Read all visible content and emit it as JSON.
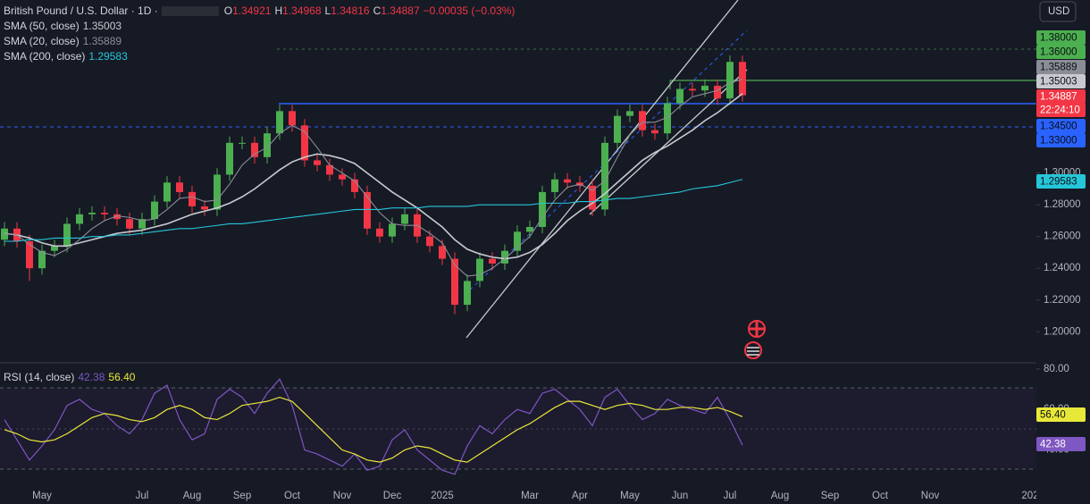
{
  "chart_data": [
    {
      "type": "candlestick",
      "title": "British Pound / U.S. Dollar · 1D ·",
      "ohlc": [
        {
          "label": "O",
          "value": 1.34921
        },
        {
          "label": "H",
          "value": 1.34968
        },
        {
          "label": "L",
          "value": 1.34816
        },
        {
          "label": "C",
          "value": 1.34887
        }
      ],
      "change": "−0.00035 (−0.03%)",
      "currency": "USD",
      "countdown": "22:24:10",
      "up_color": "#4caf50",
      "down_color": "#f23645",
      "ylim": [
        1.181,
        1.409
      ],
      "yticks": [
        {
          "value": 1.2,
          "label": "1.20000"
        },
        {
          "value": 1.22,
          "label": "1.22000"
        },
        {
          "value": 1.24,
          "label": "1.24000"
        },
        {
          "value": 1.26,
          "label": "1.26000"
        },
        {
          "value": 1.28,
          "label": "1.28000"
        },
        {
          "value": 1.3,
          "label": "1.30000"
        }
      ],
      "grid": false,
      "open": [
        1.258,
        1.265,
        1.257,
        1.24,
        1.251,
        1.254,
        1.268,
        1.274,
        1.275,
        1.274,
        1.271,
        1.265,
        1.271,
        1.282,
        1.294,
        1.288,
        1.279,
        1.277,
        1.299,
        1.319,
        1.319,
        1.31,
        1.325,
        1.339,
        1.33,
        1.308,
        1.305,
        1.299,
        1.296,
        1.288,
        1.265,
        1.26,
        1.268,
        1.274,
        1.26,
        1.254,
        1.246,
        1.217,
        1.232,
        1.246,
        1.243,
        1.251,
        1.263,
        1.266,
        1.288,
        1.296,
        1.294,
        1.292,
        1.277,
        1.319,
        1.336,
        1.339,
        1.327,
        1.325,
        1.344,
        1.353,
        1.352,
        1.355,
        1.347,
        1.37,
        null,
        null,
        null,
        null,
        null,
        null,
        null,
        null,
        null,
        null,
        null,
        null,
        null,
        null,
        null,
        null,
        null,
        null,
        null,
        null,
        null,
        null,
        null
      ],
      "high": [
        1.269,
        1.269,
        1.261,
        1.255,
        1.258,
        1.272,
        1.278,
        1.279,
        1.279,
        1.278,
        1.275,
        1.275,
        1.286,
        1.298,
        1.298,
        1.292,
        1.283,
        1.303,
        1.323,
        1.323,
        1.323,
        1.329,
        1.343,
        1.343,
        1.334,
        1.312,
        1.309,
        1.303,
        1.3,
        1.292,
        1.269,
        1.272,
        1.278,
        1.278,
        1.264,
        1.258,
        1.25,
        1.236,
        1.25,
        1.25,
        1.255,
        1.267,
        1.27,
        1.292,
        1.3,
        1.3,
        1.298,
        1.296,
        1.323,
        1.34,
        1.343,
        1.343,
        1.331,
        1.348,
        1.357,
        1.357,
        1.359,
        1.359,
        1.374,
        1.374,
        null,
        null,
        null,
        null,
        null,
        null,
        null,
        null,
        null,
        null,
        null,
        null,
        null,
        null,
        null,
        null,
        null,
        null,
        null,
        null,
        null,
        null,
        null
      ],
      "low": [
        1.254,
        1.253,
        1.232,
        1.236,
        1.247,
        1.25,
        1.264,
        1.27,
        1.27,
        1.267,
        1.261,
        1.261,
        1.267,
        1.278,
        1.284,
        1.275,
        1.273,
        1.273,
        1.295,
        1.315,
        1.306,
        1.306,
        1.321,
        1.326,
        1.304,
        1.301,
        1.295,
        1.292,
        1.284,
        1.261,
        1.256,
        1.256,
        1.264,
        1.256,
        1.25,
        1.242,
        1.211,
        1.213,
        1.228,
        1.239,
        1.239,
        1.247,
        1.259,
        1.262,
        1.284,
        1.29,
        1.288,
        1.273,
        1.273,
        1.315,
        1.332,
        1.323,
        1.321,
        1.321,
        1.34,
        1.348,
        1.348,
        1.343,
        1.343,
        1.345,
        null,
        null,
        null,
        null,
        null,
        null,
        null,
        null,
        null,
        null,
        null,
        null,
        null,
        null,
        null,
        null,
        null,
        null,
        null,
        null,
        null,
        null,
        null
      ],
      "close": [
        1.265,
        1.257,
        1.24,
        1.251,
        1.254,
        1.268,
        1.274,
        1.275,
        1.274,
        1.271,
        1.265,
        1.271,
        1.282,
        1.294,
        1.288,
        1.279,
        1.277,
        1.299,
        1.319,
        1.319,
        1.31,
        1.325,
        1.339,
        1.33,
        1.308,
        1.305,
        1.299,
        1.296,
        1.288,
        1.265,
        1.26,
        1.268,
        1.274,
        1.26,
        1.254,
        1.246,
        1.217,
        1.232,
        1.246,
        1.243,
        1.251,
        1.263,
        1.266,
        1.288,
        1.296,
        1.294,
        1.292,
        1.277,
        1.319,
        1.336,
        1.339,
        1.327,
        1.325,
        1.344,
        1.353,
        1.352,
        1.355,
        1.347,
        1.37,
        1.349,
        null,
        null,
        null,
        null,
        null,
        null,
        null,
        null,
        null,
        null,
        null,
        null,
        null,
        null,
        null,
        null,
        null,
        null,
        null,
        null,
        null,
        null,
        null
      ],
      "series": [
        {
          "name": "SMA (50, close)",
          "color": "#c8cad0",
          "last_value": 1.35003,
          "values": [
            1.262,
            1.261,
            1.259,
            1.256,
            1.254,
            1.254,
            1.256,
            1.258,
            1.26,
            1.262,
            1.263,
            1.264,
            1.266,
            1.268,
            1.271,
            1.274,
            1.276,
            1.278,
            1.281,
            1.285,
            1.29,
            1.296,
            1.302,
            1.307,
            1.31,
            1.312,
            1.311,
            1.309,
            1.306,
            1.3,
            1.294,
            1.288,
            1.283,
            1.278,
            1.272,
            1.266,
            1.258,
            1.252,
            1.249,
            1.247,
            1.246,
            1.247,
            1.25,
            1.255,
            1.262,
            1.27,
            1.276,
            1.281,
            1.287,
            1.294,
            1.301,
            1.308,
            1.313,
            1.317,
            1.322,
            1.327,
            1.333,
            1.338,
            1.344,
            1.35,
            null,
            null,
            null,
            null,
            null,
            null,
            null,
            null,
            null,
            null,
            null,
            null,
            null,
            null,
            null,
            null,
            null,
            null,
            null,
            null,
            null,
            null,
            null
          ]
        },
        {
          "name": "SMA (20, close)",
          "color": "#8a8d96",
          "last_value": 1.35889,
          "values": [
            1.262,
            1.261,
            1.255,
            1.25,
            1.248,
            1.252,
            1.258,
            1.265,
            1.27,
            1.273,
            1.272,
            1.27,
            1.271,
            1.277,
            1.284,
            1.285,
            1.282,
            1.283,
            1.293,
            1.305,
            1.312,
            1.316,
            1.325,
            1.33,
            1.326,
            1.316,
            1.305,
            1.3,
            1.295,
            1.285,
            1.275,
            1.268,
            1.267,
            1.267,
            1.262,
            1.256,
            1.242,
            1.235,
            1.236,
            1.24,
            1.246,
            1.253,
            1.26,
            1.272,
            1.283,
            1.291,
            1.293,
            1.289,
            1.295,
            1.31,
            1.324,
            1.332,
            1.332,
            1.335,
            1.342,
            1.348,
            1.35,
            1.352,
            1.357,
            1.359,
            null,
            null,
            null,
            null,
            null,
            null,
            null,
            null,
            null,
            null,
            null,
            null,
            null,
            null,
            null,
            null,
            null,
            null,
            null,
            null,
            null,
            null,
            null
          ]
        },
        {
          "name": "SMA (200, close)",
          "color": "#26c6da",
          "last_value": 1.29583,
          "values": [
            1.257,
            1.257,
            1.258,
            1.258,
            1.259,
            1.259,
            1.259,
            1.26,
            1.26,
            1.261,
            1.261,
            1.262,
            1.263,
            1.264,
            1.265,
            1.265,
            1.266,
            1.267,
            1.268,
            1.268,
            1.269,
            1.27,
            1.271,
            1.272,
            1.273,
            1.274,
            1.275,
            1.276,
            1.277,
            1.277,
            1.277,
            1.278,
            1.278,
            1.278,
            1.279,
            1.279,
            1.279,
            1.279,
            1.28,
            1.28,
            1.28,
            1.28,
            1.28,
            1.281,
            1.281,
            1.281,
            1.282,
            1.282,
            1.283,
            1.284,
            1.284,
            1.285,
            1.286,
            1.287,
            1.288,
            1.29,
            1.291,
            1.292,
            1.294,
            1.296,
            null,
            null,
            null,
            null,
            null,
            null,
            null,
            null,
            null,
            null,
            null,
            null,
            null,
            null,
            null,
            null,
            null,
            null,
            null,
            null,
            null,
            null,
            null
          ]
        }
      ],
      "price_labels": [
        {
          "value": 1.38,
          "label": "1.38000",
          "color": "#4caf50"
        },
        {
          "value": 1.36,
          "label": "1.36000",
          "color": "#4caf50"
        },
        {
          "value": 1.345,
          "label": "1.34500",
          "color": "#2962ff"
        },
        {
          "value": 1.33,
          "label": "1.33000",
          "color": "#2962ff"
        }
      ]
    },
    {
      "type": "line",
      "title": "RSI (14, close)",
      "categories": [
        null,
        null,
        null,
        "May",
        null,
        null,
        null,
        null,
        null,
        null,
        null,
        "Jul",
        null,
        null,
        null,
        "Aug",
        null,
        null,
        null,
        "Sep",
        null,
        null,
        null,
        "Oct",
        null,
        null,
        null,
        "Nov",
        null,
        null,
        null,
        "Dec",
        null,
        null,
        null,
        "2025",
        null,
        null,
        null,
        null,
        null,
        null,
        "Mar",
        null,
        null,
        null,
        "Apr",
        null,
        null,
        null,
        "May",
        null,
        null,
        null,
        "Jun",
        null,
        null,
        null,
        "Jul",
        null,
        null,
        null,
        "Aug",
        null,
        null,
        null,
        "Sep",
        null,
        null,
        null,
        "Oct",
        null,
        null,
        null,
        "Nov",
        null,
        null,
        null,
        null,
        null,
        null,
        null,
        "202"
      ],
      "ylim": [
        23.9,
        82.6
      ],
      "yticks": [
        {
          "value": 80,
          "label": "80.00"
        },
        {
          "value": 60,
          "label": "60.00"
        },
        {
          "value": 40,
          "label": "40.00"
        }
      ],
      "grid": false,
      "series": [
        {
          "color": "#7e57c2",
          "last_value": 42.38,
          "values": [
            55,
            45,
            35,
            42,
            50,
            62,
            65,
            60,
            58,
            52,
            48,
            55,
            68,
            72,
            55,
            45,
            48,
            65,
            70,
            66,
            58,
            68,
            75,
            62,
            40,
            38,
            35,
            32,
            38,
            30,
            32,
            45,
            50,
            40,
            35,
            30,
            28,
            42,
            52,
            48,
            55,
            60,
            58,
            68,
            70,
            65,
            60,
            52,
            66,
            70,
            62,
            55,
            58,
            65,
            62,
            60,
            58,
            66,
            55,
            42.38,
            null,
            null,
            null,
            null,
            null,
            null,
            null,
            null,
            null,
            null,
            null,
            null,
            null,
            null,
            null,
            null,
            null,
            null,
            null,
            null,
            null,
            null,
            null
          ]
        },
        {
          "color": "#e8e83a",
          "last_value": {
            "value": 56.4,
            "label": "56.40"
          },
          "values": [
            50,
            48,
            45,
            44,
            45,
            48,
            52,
            56,
            58,
            57,
            55,
            54,
            56,
            60,
            62,
            60,
            56,
            55,
            58,
            62,
            63,
            64,
            66,
            64,
            58,
            52,
            46,
            40,
            38,
            35,
            34,
            36,
            40,
            42,
            41,
            38,
            35,
            34,
            38,
            42,
            46,
            50,
            53,
            57,
            61,
            64,
            64,
            62,
            60,
            62,
            63,
            62,
            60,
            60,
            61,
            61,
            60,
            61,
            59,
            56.4,
            null,
            null,
            null,
            null,
            null,
            null,
            null,
            null,
            null,
            null,
            null,
            null,
            null,
            null,
            null,
            null,
            null,
            null,
            null,
            null,
            null,
            null,
            null
          ]
        }
      ]
    }
  ]
}
